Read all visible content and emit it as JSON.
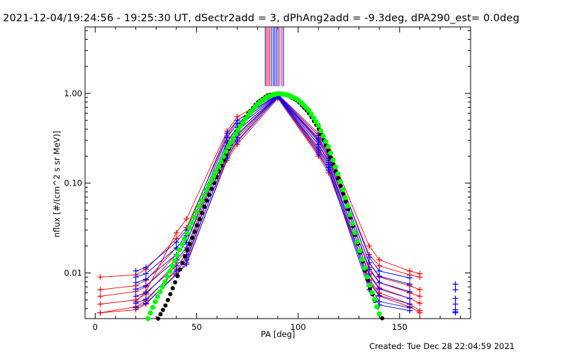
{
  "header": {
    "title": "2021-12-04/19:24:56 - 19:25:30 UT, dSectr2add = 3, dPhAng2add = -9.3deg, dPA290_est=  0.0deg"
  },
  "footer": {
    "created": "Created: Tue Dec 28 22:04:59 2021"
  },
  "chart_data": {
    "type": "line",
    "xlabel": "PA [deg]",
    "ylabel": "nflux [#/(cm^2 s sr MeV)]",
    "xlim": [
      -5,
      185
    ],
    "ylim": [
      0.0031,
      5.5
    ],
    "yscale": "log",
    "xticks": [
      0,
      50,
      100,
      150
    ],
    "xtick_labels": [
      "0",
      "50",
      "100",
      "150"
    ],
    "yticks": [
      0.01,
      0.1,
      1.0
    ],
    "ytick_labels": [
      "0.01",
      "0.10",
      "1.00"
    ],
    "grid": false,
    "legend": "none",
    "colors": {
      "red": "#ff0000",
      "blue": "#0000ff",
      "green": "#00ff00",
      "black": "#000000"
    },
    "x_pa": [
      2.5,
      20,
      25,
      40,
      45,
      65,
      70,
      90,
      110,
      115,
      135,
      140,
      155,
      160,
      177.5
    ],
    "series": [
      {
        "color": "red",
        "y": [
          0.009,
          0.0095,
          0.011,
          0.024,
          0.032,
          0.33,
          0.5,
          0.96,
          0.32,
          0.22,
          0.016,
          0.012,
          0.0095,
          0.009,
          null
        ]
      },
      {
        "color": "red",
        "y": [
          0.0065,
          0.0072,
          0.0083,
          0.019,
          0.026,
          0.28,
          0.42,
          0.95,
          0.3,
          0.2,
          0.013,
          0.009,
          0.0072,
          0.0065,
          null
        ]
      },
      {
        "color": "red",
        "y": [
          0.0055,
          0.0062,
          0.007,
          0.016,
          0.022,
          0.25,
          0.38,
          0.93,
          0.27,
          0.18,
          0.0115,
          0.0078,
          0.006,
          0.0055,
          null
        ]
      },
      {
        "color": "red",
        "y": [
          0.0045,
          0.005,
          0.0058,
          0.013,
          0.018,
          0.22,
          0.34,
          0.92,
          0.24,
          0.16,
          0.0098,
          0.0068,
          0.0052,
          0.0046,
          null
        ]
      },
      {
        "color": "red",
        "y": [
          0.0036,
          0.0042,
          0.0049,
          0.011,
          0.015,
          0.2,
          0.3,
          0.9,
          0.22,
          0.14,
          0.0085,
          0.006,
          0.0045,
          0.0038,
          null
        ]
      },
      {
        "color": "red",
        "y": [
          0.0036,
          0.0039,
          0.0045,
          0.0098,
          0.013,
          0.18,
          0.27,
          0.88,
          0.2,
          0.13,
          0.0078,
          0.0055,
          0.0042,
          0.0036,
          null
        ]
      },
      {
        "color": "red",
        "y": [
          null,
          0.0048,
          0.0062,
          0.028,
          0.04,
          0.38,
          0.55,
          0.98,
          0.36,
          0.24,
          0.02,
          0.014,
          0.0105,
          0.0098,
          null
        ]
      },
      {
        "color": "blue",
        "y": [
          null,
          0.0105,
          0.0115,
          0.022,
          0.03,
          0.36,
          0.5,
          0.97,
          0.34,
          0.23,
          0.015,
          0.0105,
          0.0088,
          null,
          0.0075
        ]
      },
      {
        "color": "blue",
        "y": [
          null,
          0.009,
          0.0098,
          0.019,
          0.026,
          0.32,
          0.46,
          0.96,
          0.31,
          0.21,
          0.013,
          0.0092,
          0.0075,
          null,
          0.0065
        ]
      },
      {
        "color": "blue",
        "y": [
          null,
          0.0078,
          0.0085,
          0.016,
          0.022,
          0.29,
          0.42,
          0.95,
          0.29,
          0.19,
          0.011,
          0.0078,
          0.0062,
          null,
          0.0052
        ]
      },
      {
        "color": "blue",
        "y": [
          null,
          0.0066,
          0.0072,
          0.014,
          0.019,
          0.26,
          0.38,
          0.94,
          0.27,
          0.17,
          0.0095,
          0.0066,
          0.0052,
          null,
          0.0045
        ]
      },
      {
        "color": "blue",
        "y": [
          null,
          0.0055,
          0.006,
          0.012,
          0.016,
          0.24,
          0.35,
          0.93,
          0.25,
          0.16,
          0.0082,
          0.0056,
          0.0045,
          null,
          0.0039
        ]
      },
      {
        "color": "blue",
        "y": [
          null,
          0.0046,
          0.0051,
          0.0105,
          0.014,
          0.21,
          0.32,
          0.92,
          0.23,
          0.15,
          0.0072,
          0.0048,
          0.0041,
          null,
          0.0037
        ]
      },
      {
        "color": "blue",
        "y": [
          null,
          0.0041,
          0.0046,
          0.0095,
          0.0125,
          0.19,
          0.29,
          0.91,
          0.21,
          0.14,
          0.0065,
          0.0044,
          0.0038,
          null,
          0.0036
        ]
      }
    ],
    "fit_curves": [
      {
        "color": "green",
        "points": [
          [
            26,
            0.0031
          ],
          [
            30,
            0.005
          ],
          [
            35,
            0.0085
          ],
          [
            40,
            0.015
          ],
          [
            45,
            0.027
          ],
          [
            50,
            0.048
          ],
          [
            55,
            0.086
          ],
          [
            60,
            0.14
          ],
          [
            65,
            0.24
          ],
          [
            70,
            0.38
          ],
          [
            75,
            0.56
          ],
          [
            80,
            0.76
          ],
          [
            85,
            0.92
          ],
          [
            90,
            1.0
          ],
          [
            95,
            0.96
          ],
          [
            100,
            0.85
          ],
          [
            105,
            0.66
          ],
          [
            110,
            0.44
          ],
          [
            115,
            0.25
          ],
          [
            120,
            0.12
          ],
          [
            125,
            0.05
          ],
          [
            130,
            0.019
          ],
          [
            135,
            0.0075
          ],
          [
            140,
            0.0035
          ],
          [
            141,
            0.0031
          ]
        ]
      },
      {
        "color": "black",
        "points": [
          [
            31,
            0.0031
          ],
          [
            35,
            0.0045
          ],
          [
            40,
            0.0085
          ],
          [
            45,
            0.017
          ],
          [
            50,
            0.033
          ],
          [
            55,
            0.064
          ],
          [
            60,
            0.12
          ],
          [
            65,
            0.22
          ],
          [
            70,
            0.39
          ],
          [
            75,
            0.58
          ],
          [
            80,
            0.79
          ],
          [
            85,
            0.95
          ],
          [
            90,
            1.0
          ],
          [
            95,
            0.95
          ],
          [
            100,
            0.82
          ],
          [
            105,
            0.62
          ],
          [
            110,
            0.41
          ],
          [
            115,
            0.23
          ],
          [
            120,
            0.11
          ],
          [
            125,
            0.048
          ],
          [
            130,
            0.019
          ],
          [
            135,
            0.0072
          ],
          [
            140,
            0.0036
          ],
          [
            141.5,
            0.0031
          ]
        ]
      }
    ],
    "vertical_marks": [
      {
        "color": "red",
        "x": [
          84.5,
          85.2,
          86.0,
          91.0,
          92.0
        ]
      },
      {
        "color": "blue",
        "x": [
          83.8,
          86.8,
          87.7,
          88.5,
          89.3,
          90.1,
          92.8
        ]
      }
    ]
  }
}
